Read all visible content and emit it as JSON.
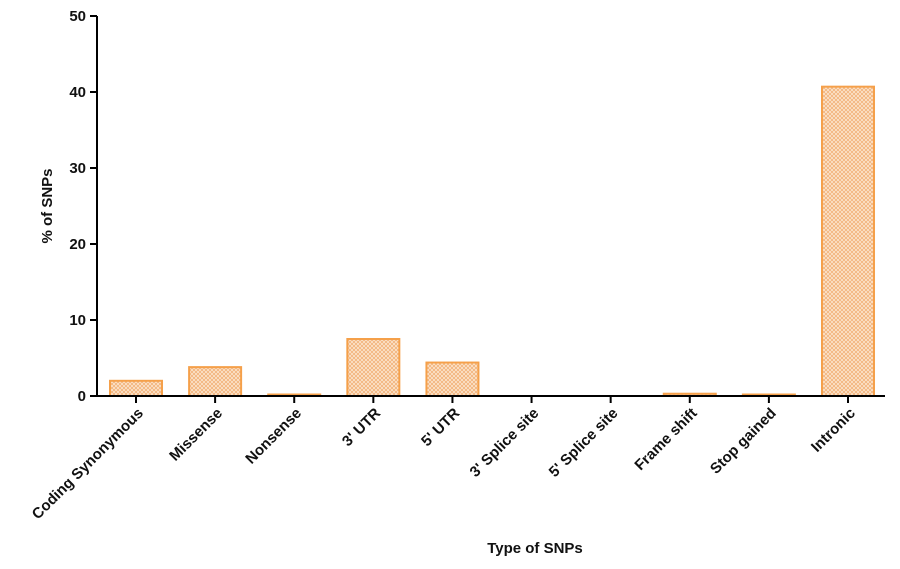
{
  "chart_data": {
    "type": "bar",
    "title": "",
    "xlabel": "Type of SNPs",
    "ylabel": "% of SNPs",
    "ylim": [
      0,
      50
    ],
    "yticks": [
      0,
      10,
      20,
      30,
      40,
      50
    ],
    "grid": false,
    "categories": [
      "Coding Synonymous",
      "Missense",
      "Nonsense",
      "3' UTR",
      "5' UTR",
      "3' Splice site",
      "5' Splice site",
      "Frame shift",
      "Stop gained",
      "Intronic"
    ],
    "values": [
      2.0,
      3.8,
      0.15,
      7.5,
      4.4,
      0.0,
      0.0,
      0.3,
      0.15,
      40.7
    ],
    "bar_color": "#f5a04a",
    "bar_fill": "#fbe3c9",
    "bar_pattern": "crosshatch"
  }
}
